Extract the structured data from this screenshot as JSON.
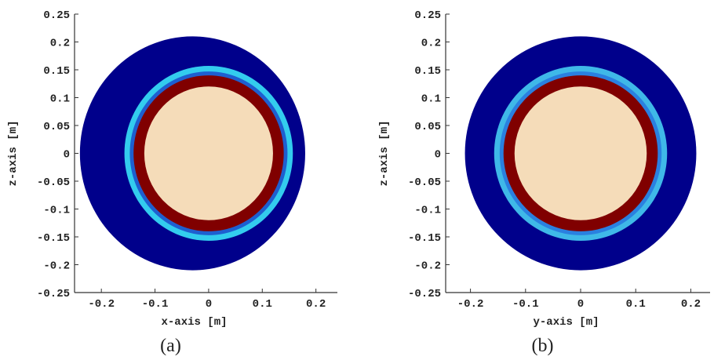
{
  "chart_data": [
    {
      "type": "circles",
      "caption": "(a)",
      "xlabel": "x-axis [m]",
      "ylabel": "z-axis [m]",
      "xlim": [
        -0.25,
        0.24
      ],
      "ylim": [
        -0.25,
        0.25
      ],
      "xticks": [
        -0.2,
        -0.1,
        0,
        0.1,
        0.2
      ],
      "yticks": [
        -0.25,
        -0.2,
        -0.15,
        -0.1,
        -0.05,
        0,
        0.05,
        0.1,
        0.15,
        0.2,
        0.25
      ],
      "circles": [
        {
          "cx": -0.03,
          "cy": 0,
          "r": 0.21,
          "color": "#00008b"
        },
        {
          "cx": 0,
          "cy": 0,
          "r": 0.157,
          "color": "#33ccee"
        },
        {
          "cx": 0,
          "cy": 0,
          "r": 0.147,
          "color": "#1e5fd0"
        },
        {
          "cx": 0,
          "cy": 0,
          "r": 0.14,
          "color": "#800000"
        },
        {
          "cx": 0,
          "cy": 0,
          "r": 0.12,
          "color": "#f5dcb9"
        }
      ]
    },
    {
      "type": "circles",
      "caption": "(b)",
      "xlabel": "y-axis [m]",
      "ylabel": "z-axis [m]",
      "xlim": [
        -0.245,
        0.235
      ],
      "ylim": [
        -0.25,
        0.25
      ],
      "xticks": [
        -0.2,
        -0.1,
        0,
        0.1,
        0.2
      ],
      "yticks": [
        -0.25,
        -0.2,
        -0.15,
        -0.1,
        -0.05,
        0,
        0.05,
        0.1,
        0.15,
        0.2,
        0.25
      ],
      "circles": [
        {
          "cx": 0,
          "cy": 0,
          "r": 0.21,
          "color": "#00008b"
        },
        {
          "cx": 0,
          "cy": 0,
          "r": 0.157,
          "color": "#3fb8e8"
        },
        {
          "cx": 0,
          "cy": 0,
          "r": 0.147,
          "color": "#2a80e0"
        },
        {
          "cx": 0,
          "cy": 0,
          "r": 0.14,
          "color": "#800000"
        },
        {
          "cx": 0,
          "cy": 0,
          "r": 0.12,
          "color": "#f5dcb9"
        }
      ]
    }
  ]
}
